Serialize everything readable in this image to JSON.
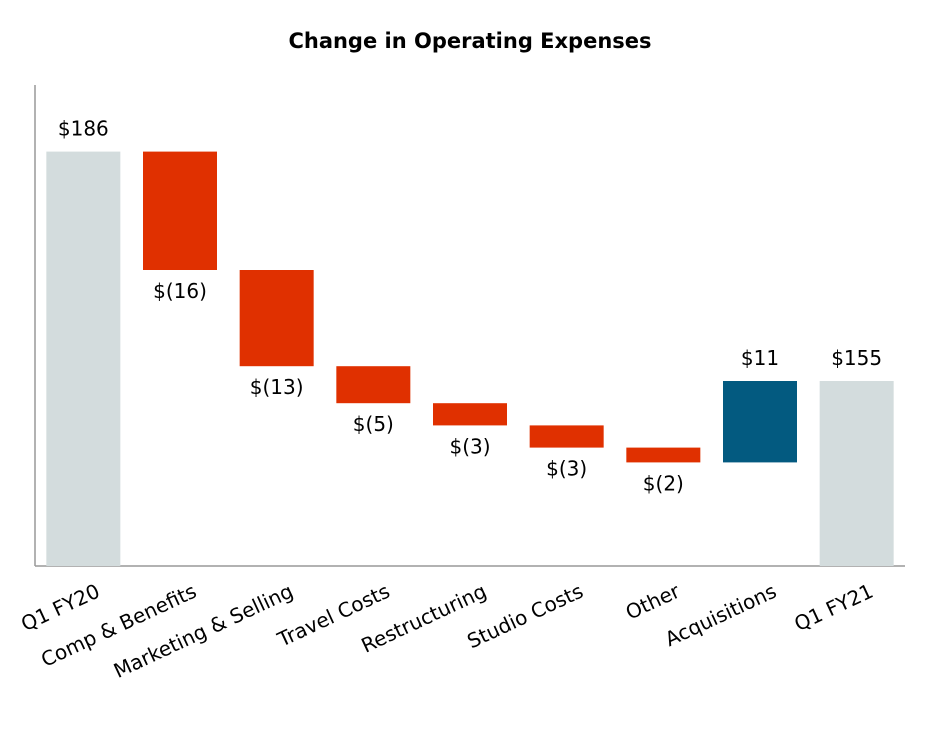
{
  "chart_data": {
    "type": "waterfall",
    "title": "Change in Operating Expenses",
    "categories": [
      "Q1 FY20",
      "Comp & Benefits",
      "Marketing & Selling",
      "Travel Costs",
      "Restructuring",
      "Studio Costs",
      "Other",
      "Acquisitions",
      "Q1 FY21"
    ],
    "values": [
      186,
      -16,
      -13,
      -5,
      -3,
      -3,
      -2,
      11,
      155
    ],
    "value_labels": [
      "$186",
      "$(16)",
      "$(13)",
      "$(5)",
      "$(3)",
      "$(3)",
      "$(2)",
      "$11",
      "$155"
    ],
    "measure": [
      "total",
      "relative",
      "relative",
      "relative",
      "relative",
      "relative",
      "relative",
      "relative",
      "total"
    ],
    "colors": {
      "total": "#d3dcdd",
      "decrease": "#e03000",
      "increase": "#035a80"
    },
    "ylim": [
      130,
      195
    ]
  }
}
